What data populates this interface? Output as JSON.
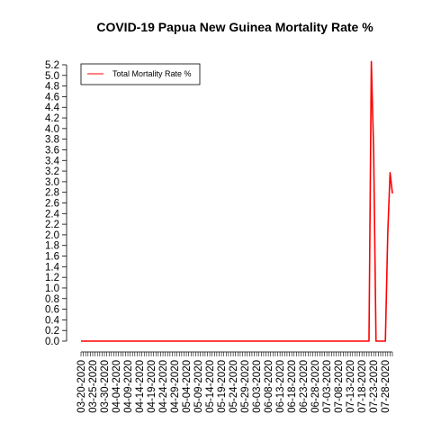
{
  "chart_data": {
    "type": "line",
    "title": "COVID-19 Papua New Guinea Mortality Rate %",
    "xlabel": "",
    "ylabel": "",
    "ylim": [
      0,
      5.2
    ],
    "y_ticks": [
      "0.0",
      "0.2",
      "0.4",
      "0.6",
      "0.8",
      "1.0",
      "1.2",
      "1.4",
      "1.6",
      "1.8",
      "2.0",
      "2.2",
      "2.4",
      "2.6",
      "2.8",
      "3.0",
      "3.2",
      "3.4",
      "3.6",
      "3.8",
      "4.0",
      "4.2",
      "4.4",
      "4.6",
      "4.8",
      "5.0",
      "5.2"
    ],
    "x_tick_labels": [
      "03-20-2020",
      "03-25-2020",
      "03-30-2020",
      "04-04-2020",
      "04-09-2020",
      "04-14-2020",
      "04-19-2020",
      "04-24-2020",
      "04-29-2020",
      "05-04-2020",
      "05-09-2020",
      "05-14-2020",
      "05-19-2020",
      "05-24-2020",
      "05-29-2020",
      "06-03-2020",
      "06-08-2020",
      "06-13-2020",
      "06-18-2020",
      "06-23-2020",
      "06-28-2020",
      "07-03-2020",
      "07-08-2020",
      "07-13-2020",
      "07-18-2020",
      "07-23-2020",
      "07-28-2020"
    ],
    "x_start": "03-20-2020",
    "x_end": "07-31-2020",
    "legend": {
      "position": "top-left"
    },
    "grid": false,
    "series": [
      {
        "name": "Total Mortality Rate %",
        "color": "#ff0000",
        "points": [
          {
            "x": "03-20-2020",
            "y": 0.0
          },
          {
            "x": "07-21-2020",
            "y": 0.0
          },
          {
            "x": "07-22-2020",
            "y": 5.26
          },
          {
            "x": "07-23-2020",
            "y": 3.57
          },
          {
            "x": "07-24-2020",
            "y": 0.0
          },
          {
            "x": "07-28-2020",
            "y": 0.0
          },
          {
            "x": "07-29-2020",
            "y": 2.0
          },
          {
            "x": "07-30-2020",
            "y": 3.17
          },
          {
            "x": "07-31-2020",
            "y": 2.78
          }
        ]
      }
    ]
  }
}
